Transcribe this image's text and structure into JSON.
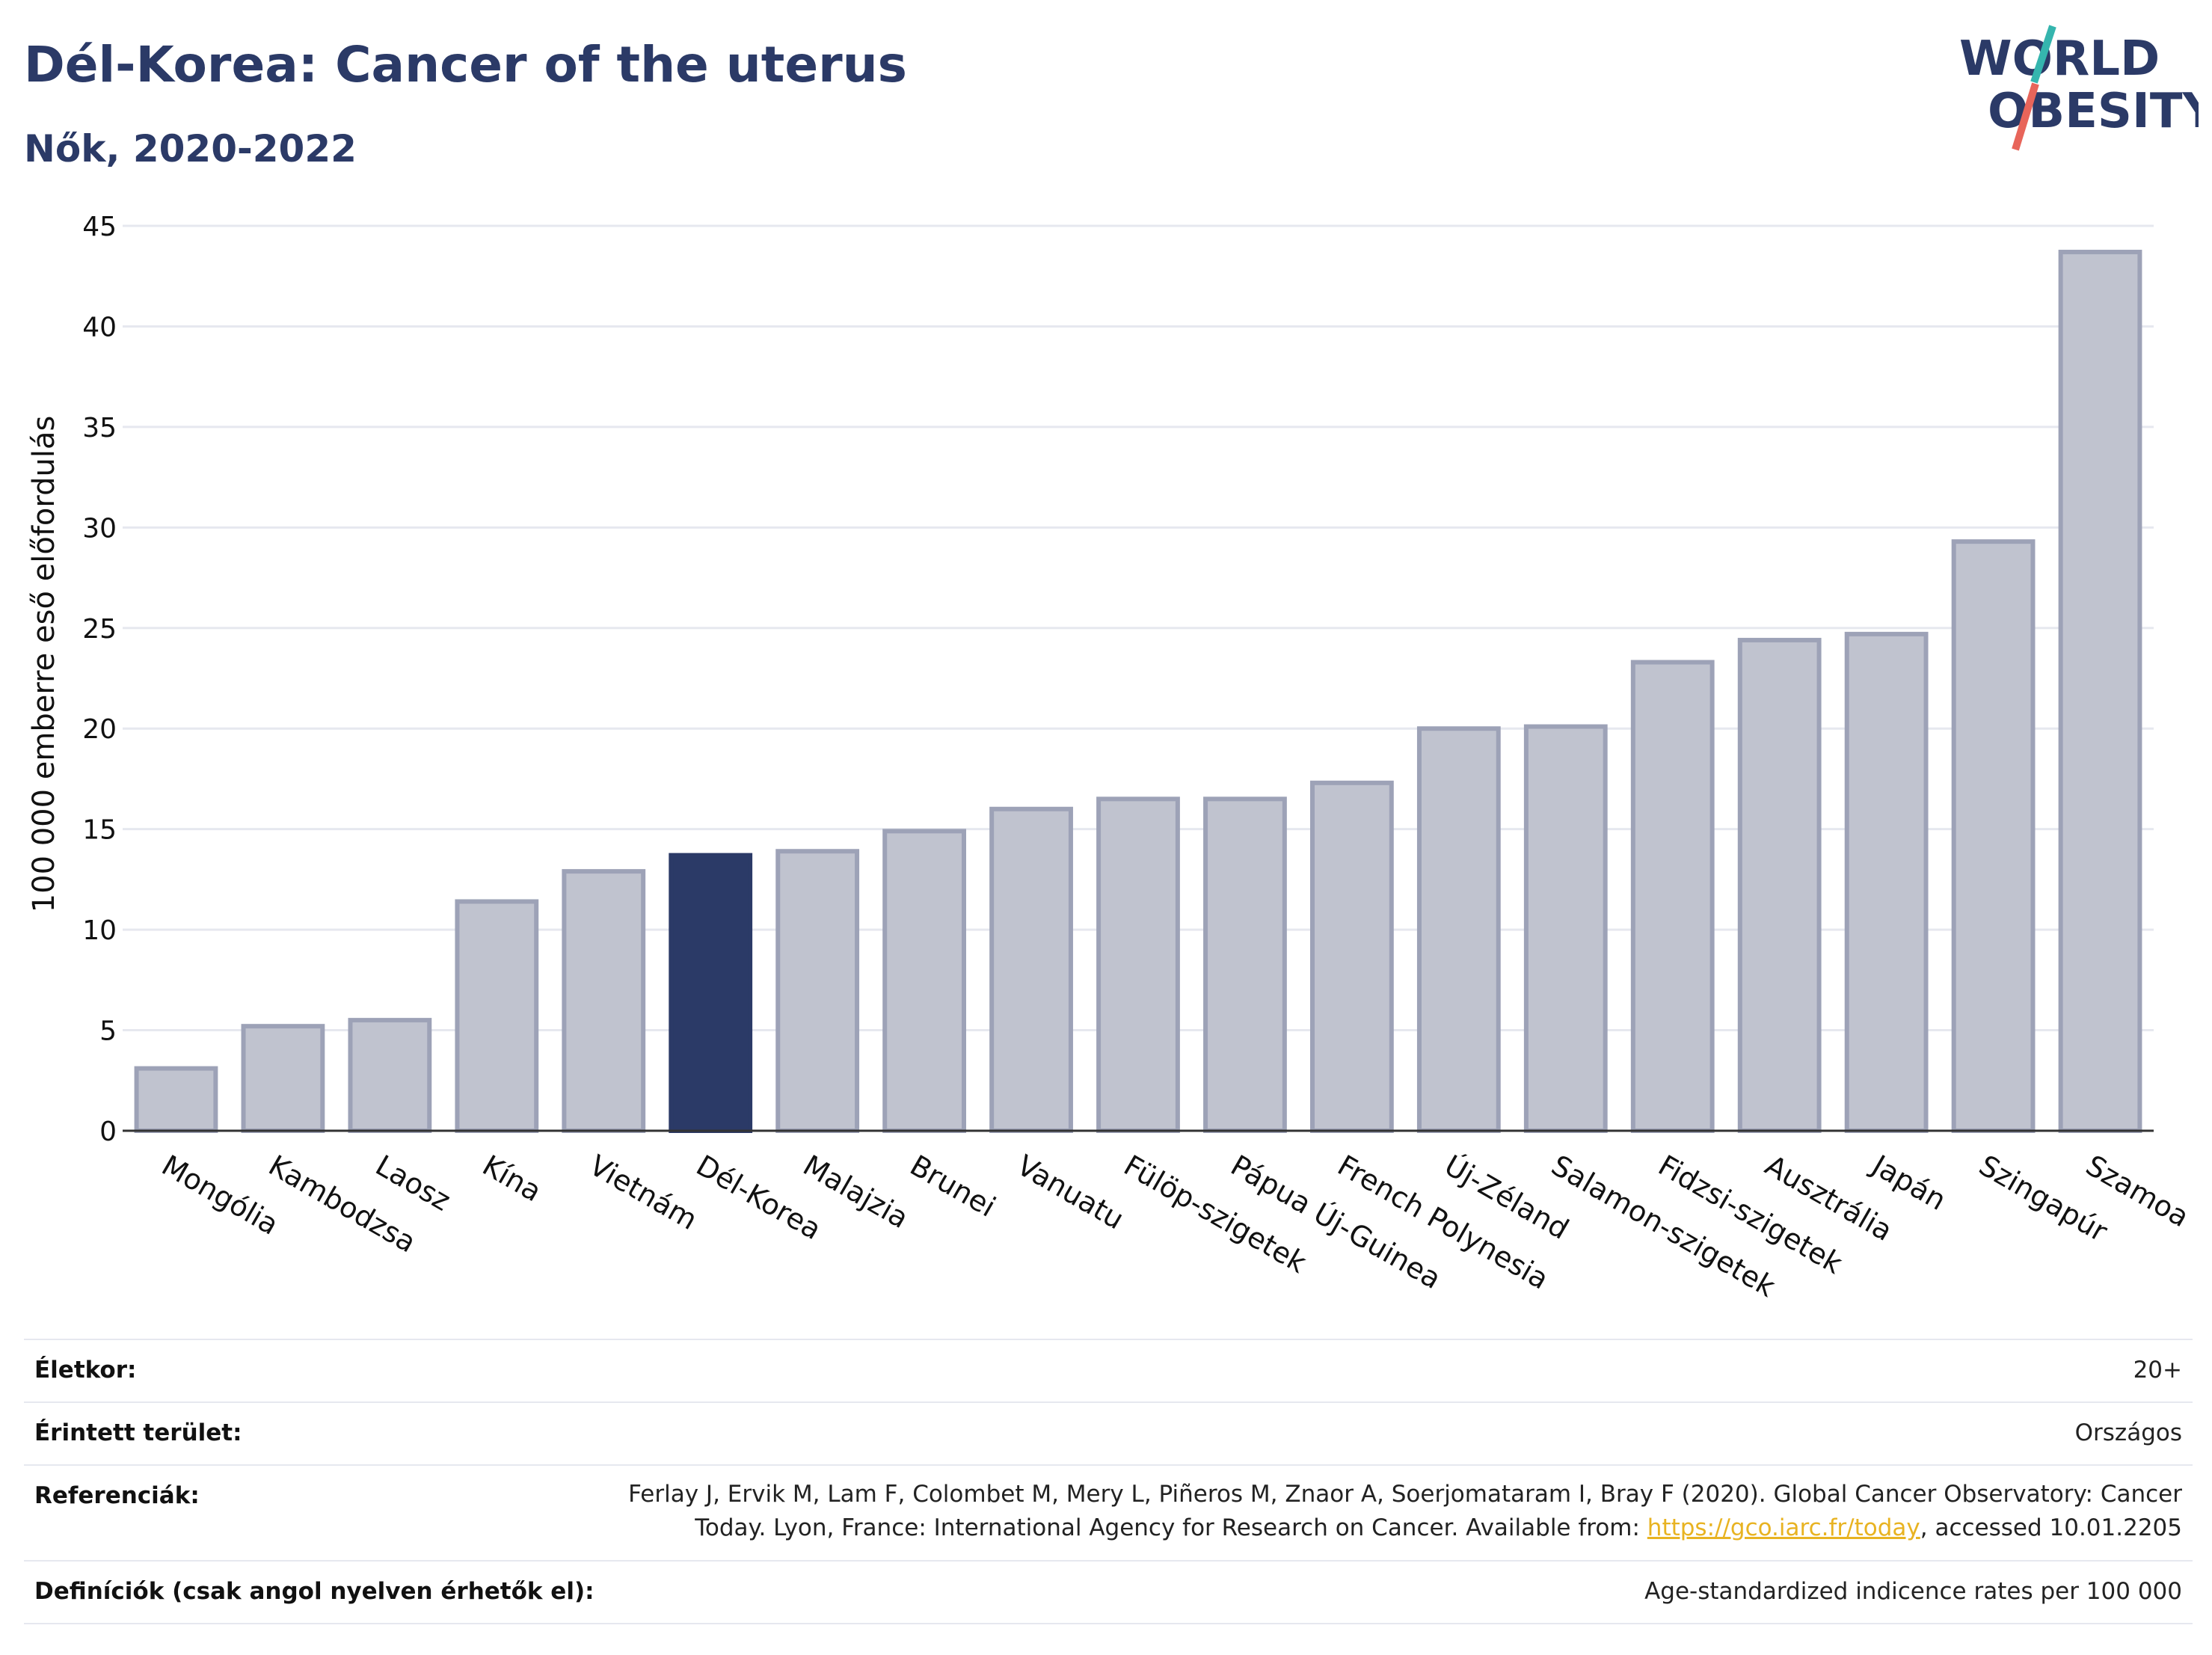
{
  "header": {
    "title": "Dél-Korea: Cancer of the uterus",
    "subtitle": "Nők, 2020-2022"
  },
  "logo": {
    "line1": "WORLD",
    "line2": "OBESITY",
    "colors": {
      "text": "#2b3a67",
      "slash_top": "#35b5ae",
      "slash_bottom": "#e8655a"
    }
  },
  "colors": {
    "bar_default": "#c0c3cf",
    "bar_stroke": "#9da2b7",
    "bar_highlight": "#2b3a67",
    "grid": "#e6e8ef",
    "axis": "#333333"
  },
  "chart_data": {
    "type": "bar",
    "ylabel": "100 000 emberre eső előfordulás",
    "ylim": [
      0,
      45
    ],
    "yticks": [
      0,
      5,
      10,
      15,
      20,
      25,
      30,
      35,
      40,
      45
    ],
    "grid": true,
    "highlight": "Dél-Korea",
    "categories": [
      "Mongólia",
      "Kambodzsa",
      "Laosz",
      "Kína",
      "Vietnám",
      "Dél-Korea",
      "Malajzia",
      "Brunei",
      "Vanuatu",
      "Fülöp-szigetek",
      "Pápua Új-Guinea",
      "French Polynesia",
      "Új-Zéland",
      "Salamon-szigetek",
      "Fidzsi-szigetek",
      "Ausztrália",
      "Japán",
      "Szingapúr",
      "Szamoa"
    ],
    "values": [
      3.1,
      5.2,
      5.5,
      11.4,
      12.9,
      13.7,
      13.9,
      14.9,
      16.0,
      16.5,
      16.5,
      17.3,
      20.0,
      20.1,
      23.3,
      24.4,
      24.7,
      29.3,
      43.7
    ]
  },
  "meta": [
    {
      "label": "Életkor:",
      "value": "20+"
    },
    {
      "label": "Érintett terület:",
      "value": "Országos"
    },
    {
      "label": "Referenciák:",
      "value_line1": "Ferlay J, Ervik M, Lam F, Colombet M, Mery L, Piñeros M, Znaor A, Soerjomataram I, Bray F (2020). Global Cancer Observatory: Cancer",
      "value_line2_pre": "Today. Lyon, France: International Agency for Research on Cancer. Available from: ",
      "link": "https://gco.iarc.fr/today",
      "value_line2_post": ", accessed 10.01.2205"
    },
    {
      "label": "Definíciók (csak angol nyelven érhetők el):",
      "value": "Age-standardized indicence rates per 100 000"
    }
  ]
}
